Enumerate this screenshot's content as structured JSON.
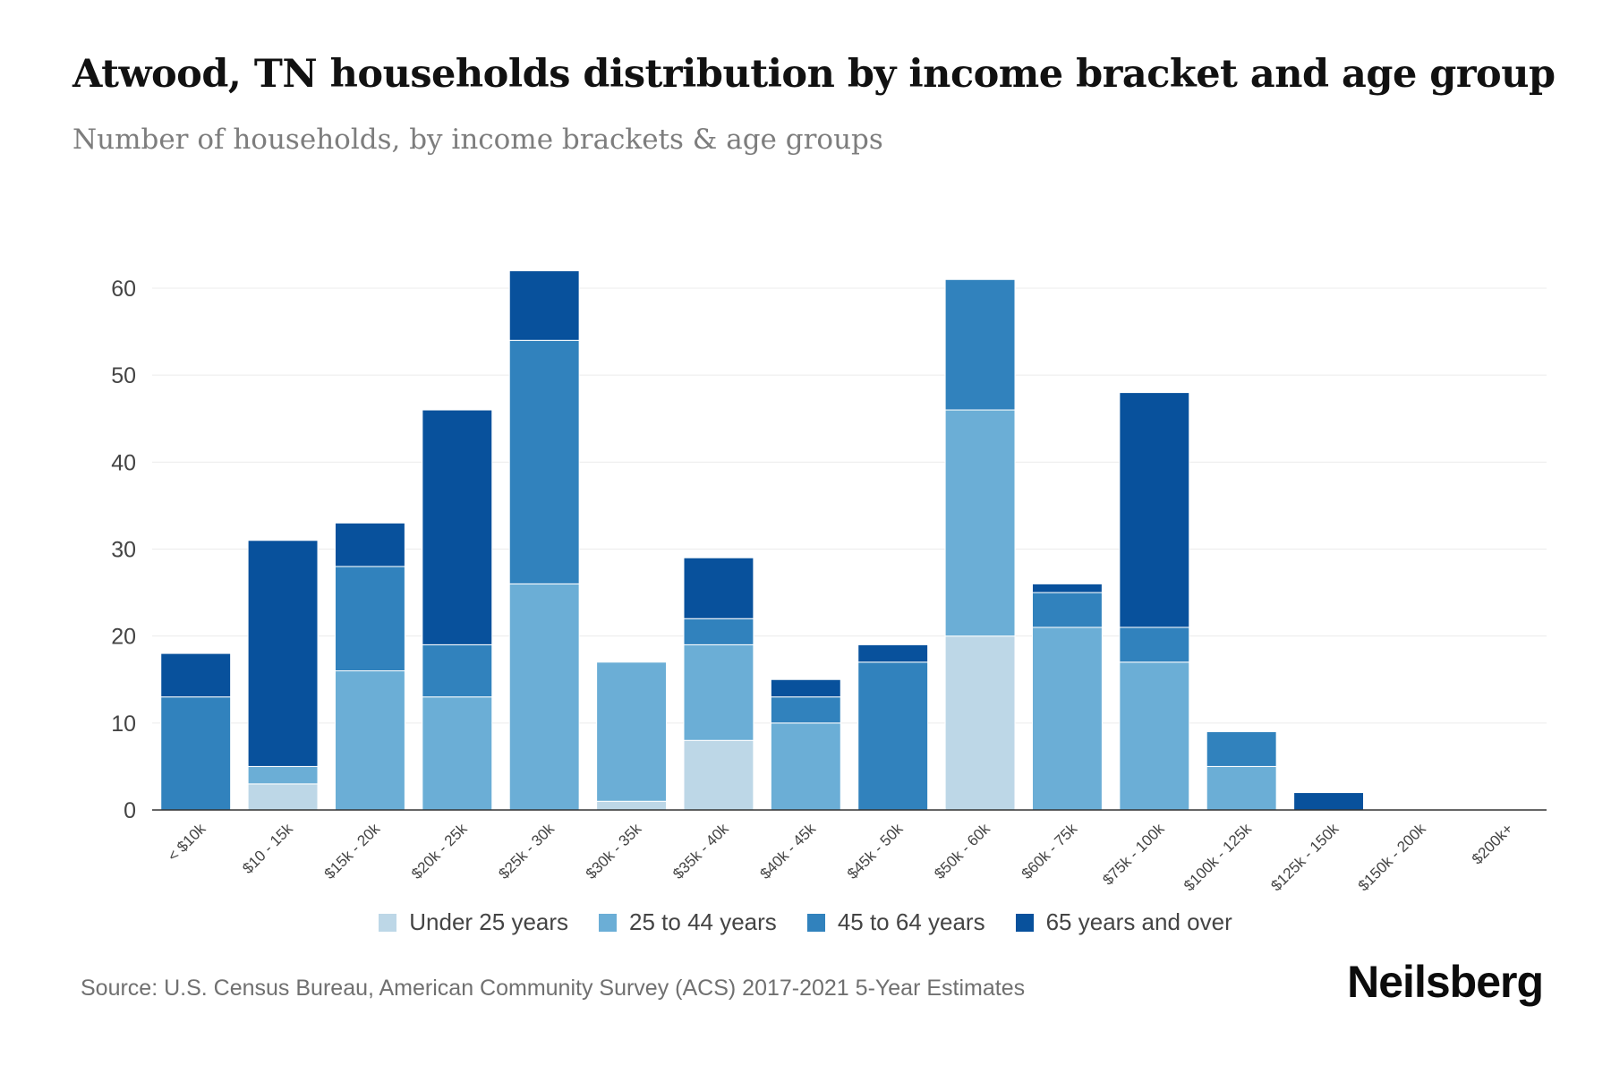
{
  "header": {
    "title": "Atwood, TN households distribution by income bracket and age group",
    "subtitle": "Number of households, by income brackets & age groups"
  },
  "footer": {
    "source": "Source: U.S. Census Bureau, American Community Survey (ACS) 2017-2021 5-Year Estimates",
    "brand": "Neilsberg"
  },
  "chart_data": {
    "type": "bar",
    "stacked": true,
    "title": "Atwood, TN households distribution by income bracket and age group",
    "subtitle": "Number of households, by income brackets & age groups",
    "xlabel": "",
    "ylabel": "",
    "ylim": [
      0,
      60
    ],
    "yticks": [
      0,
      10,
      20,
      30,
      40,
      50,
      60
    ],
    "grid": true,
    "legend_position": "bottom",
    "categories": [
      "< $10k",
      "$10 - 15k",
      "$15k - 20k",
      "$20k - 25k",
      "$25k - 30k",
      "$30k - 35k",
      "$35k - 40k",
      "$40k - 45k",
      "$45k - 50k",
      "$50k - 60k",
      "$60k - 75k",
      "$75k - 100k",
      "$100k - 125k",
      "$125k - 150k",
      "$150k - 200k",
      "$200k+"
    ],
    "series": [
      {
        "name": "Under 25 years",
        "color": "#bdd7e7",
        "values": [
          0,
          3,
          0,
          0,
          0,
          1,
          8,
          0,
          0,
          20,
          0,
          0,
          0,
          0,
          0,
          0
        ]
      },
      {
        "name": "25 to 44 years",
        "color": "#6baed6",
        "values": [
          0,
          2,
          16,
          13,
          26,
          16,
          11,
          10,
          0,
          26,
          21,
          17,
          5,
          0,
          0,
          0
        ]
      },
      {
        "name": "45 to 64 years",
        "color": "#3182bd",
        "values": [
          13,
          0,
          12,
          6,
          28,
          0,
          3,
          3,
          17,
          15,
          4,
          4,
          4,
          0,
          0,
          0
        ]
      },
      {
        "name": "65 years and over",
        "color": "#08519c",
        "values": [
          5,
          26,
          5,
          27,
          8,
          0,
          7,
          2,
          2,
          0,
          1,
          27,
          0,
          2,
          0,
          0
        ]
      }
    ]
  }
}
